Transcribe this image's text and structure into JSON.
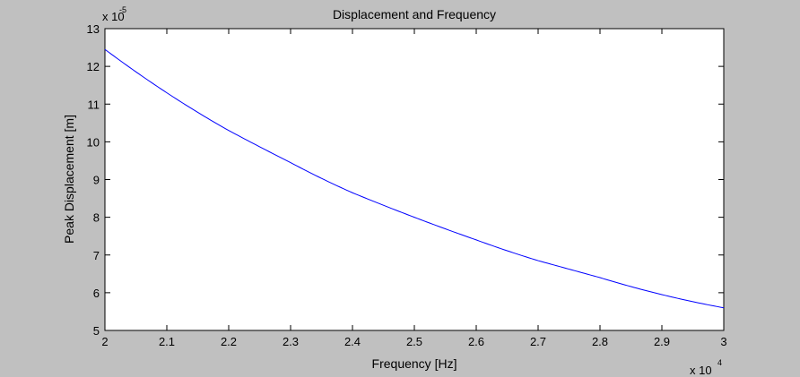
{
  "chart_data": {
    "type": "line",
    "title": "Displacement and Frequency",
    "xlabel": "Frequency [Hz]",
    "ylabel": "Peak Displacement [m]",
    "x_multiplier_label": "x 10",
    "x_multiplier_exponent": "4",
    "y_multiplier_label": "x 10",
    "y_multiplier_exponent": "-5",
    "xlim": [
      2,
      3
    ],
    "ylim": [
      5,
      13
    ],
    "x_ticks": [
      2,
      2.1,
      2.2,
      2.3,
      2.4,
      2.5,
      2.6,
      2.7,
      2.8,
      2.9,
      3
    ],
    "x_tick_labels": [
      "2",
      "2.1",
      "2.2",
      "2.3",
      "2.4",
      "2.5",
      "2.6",
      "2.7",
      "2.8",
      "2.9",
      "3"
    ],
    "y_ticks": [
      5,
      6,
      7,
      8,
      9,
      10,
      11,
      12,
      13
    ],
    "y_tick_labels": [
      "5",
      "6",
      "7",
      "8",
      "9",
      "10",
      "11",
      "12",
      "13"
    ],
    "grid": false,
    "legend": "none",
    "series": [
      {
        "color": "#0000ff",
        "x": [
          2.0,
          2.1,
          2.2,
          2.3,
          2.4,
          2.5,
          2.6,
          2.7,
          2.8,
          2.9,
          3.0
        ],
        "y": [
          12.45,
          11.3,
          10.3,
          9.45,
          8.65,
          8.0,
          7.4,
          6.85,
          6.4,
          5.95,
          5.6
        ]
      }
    ]
  }
}
